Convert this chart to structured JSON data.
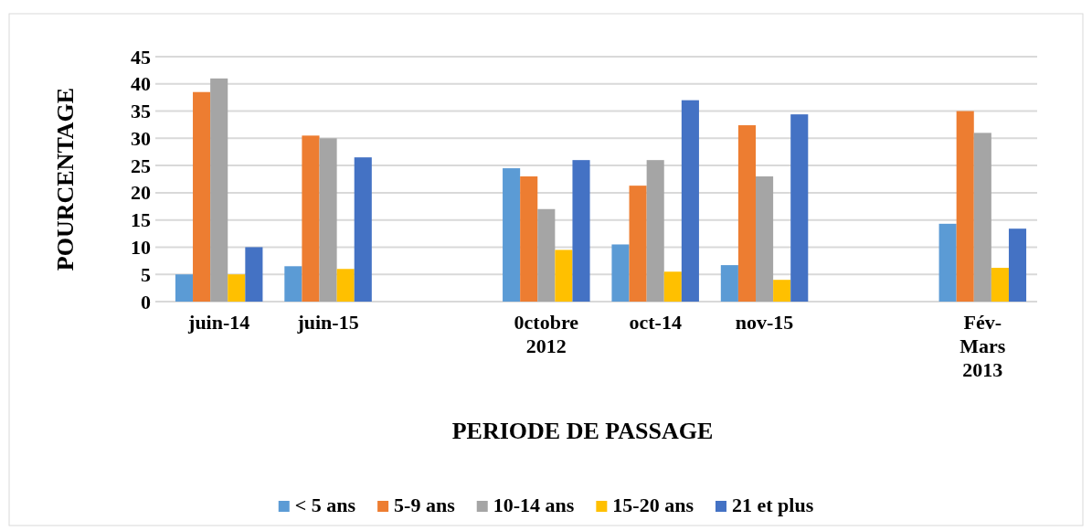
{
  "chart_data": {
    "type": "bar",
    "xlabel": "PERIODE DE PASSAGE",
    "ylabel": "POURCENTAGE",
    "categories": [
      "juin-14",
      "juin-15",
      null,
      "0ctobre 2012",
      "oct-14",
      "nov-15",
      null,
      "Fév-Mars 2013"
    ],
    "series": [
      {
        "name": "< 5 ans",
        "color": "#5b9bd5",
        "values": [
          5,
          6.5,
          null,
          24.5,
          10.5,
          6.7,
          null,
          14.3
        ]
      },
      {
        "name": "5-9 ans",
        "color": "#ed7d31",
        "values": [
          38.5,
          30.5,
          null,
          23,
          21.3,
          32.4,
          null,
          35
        ]
      },
      {
        "name": "10-14 ans",
        "color": "#a5a5a5",
        "values": [
          41,
          30,
          null,
          17,
          26,
          23,
          null,
          31
        ]
      },
      {
        "name": "15-20 ans",
        "color": "#ffc000",
        "values": [
          5,
          6,
          null,
          9.5,
          5.5,
          4,
          null,
          6.2
        ]
      },
      {
        "name": "21 et plus",
        "color": "#4472c4",
        "values": [
          10,
          26.5,
          null,
          26,
          37,
          34.4,
          null,
          13.4
        ]
      }
    ],
    "ylim": [
      0,
      45
    ],
    "yticks": [
      0,
      5,
      10,
      15,
      20,
      25,
      30,
      35,
      40,
      45
    ],
    "grid": "y",
    "legend": "bottom"
  }
}
